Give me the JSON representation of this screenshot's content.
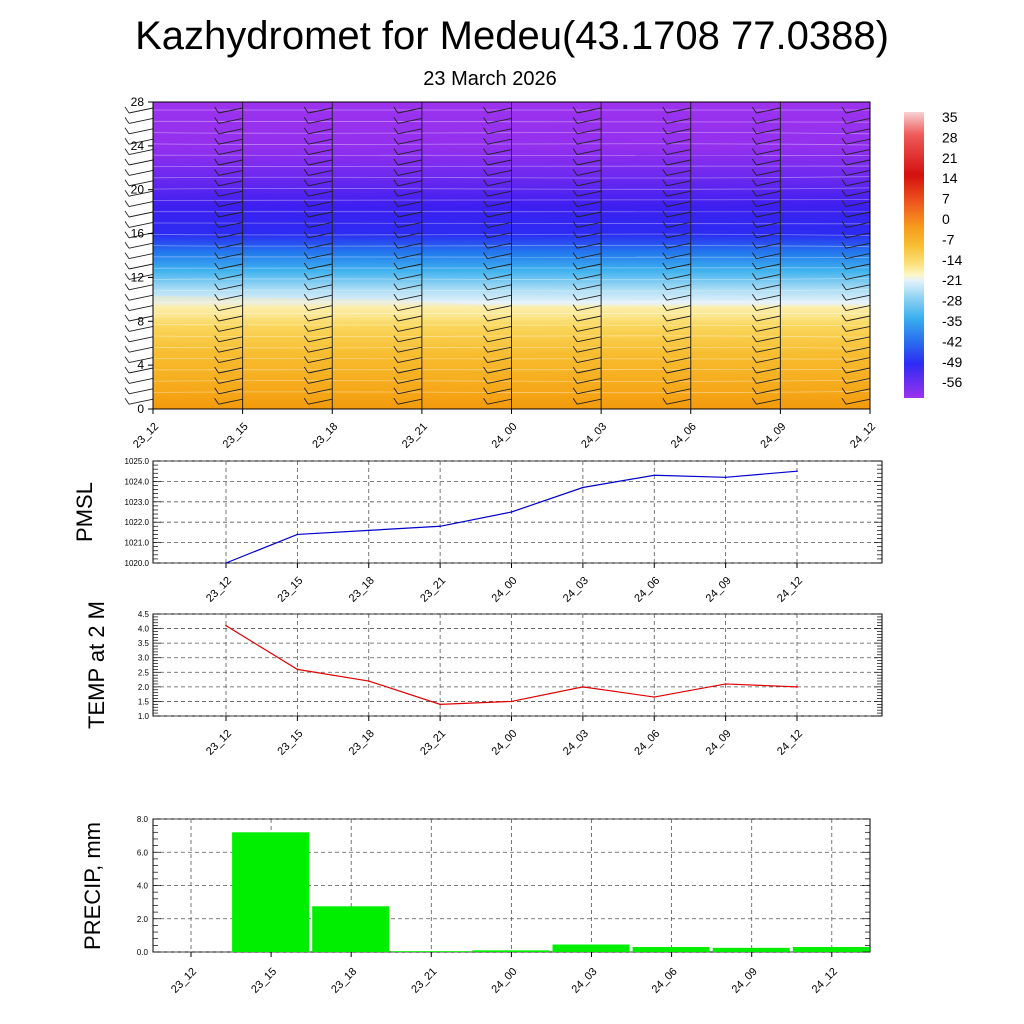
{
  "page": {
    "title": "Kazhydromet for Medeu(43.1708 77.0388)",
    "subtitle": "23 March 2026"
  },
  "chart_data": [
    {
      "type": "heatmap",
      "name": "cross-section",
      "x_ticks": [
        "23_12",
        "23_15",
        "23_18",
        "23_21",
        "24_00",
        "24_03",
        "24_06",
        "24_09",
        "24_12"
      ],
      "y_ticks": [
        "0",
        "4",
        "8",
        "12",
        "16",
        "20",
        "24",
        "28"
      ],
      "ylim": [
        0,
        28
      ],
      "colorbar_labels": [
        "35",
        "28",
        "21",
        "14",
        "7",
        "0",
        "-7",
        "-14",
        "-21",
        "-28",
        "-35",
        "-42",
        "-49",
        "-56"
      ],
      "colors": {
        "warm": "#f6b21e",
        "cold": "#9a2fee",
        "jet": "#2d2af3"
      }
    },
    {
      "type": "line",
      "name": "PMSL",
      "ylabel": "PMSL",
      "categories": [
        "23_12",
        "23_15",
        "23_18",
        "23_21",
        "24_00",
        "24_03",
        "24_06",
        "24_09",
        "24_12"
      ],
      "values": [
        1020.0,
        1021.4,
        1021.6,
        1021.8,
        1022.5,
        1023.7,
        1024.3,
        1024.2,
        1024.5
      ],
      "ylim": [
        1020.0,
        1025.0
      ],
      "y_ticks": [
        "1020.0",
        "1021.0",
        "1022.0",
        "1023.0",
        "1024.0",
        "1025.0"
      ],
      "color": "#0000cc"
    },
    {
      "type": "line",
      "name": "TEMP at 2 M",
      "ylabel": "TEMP at 2 M",
      "categories": [
        "23_12",
        "23_15",
        "23_18",
        "23_21",
        "24_00",
        "24_03",
        "24_06",
        "24_09",
        "24_12"
      ],
      "values": [
        4.1,
        2.6,
        2.2,
        1.4,
        1.5,
        2.0,
        1.65,
        2.1,
        2.0
      ],
      "ylim": [
        1.0,
        4.5
      ],
      "y_ticks": [
        "1.0",
        "1.5",
        "2.0",
        "2.5",
        "3.0",
        "3.5",
        "4.0",
        "4.5"
      ],
      "color": "#e00000"
    },
    {
      "type": "bar",
      "name": "PRECIP, mm",
      "ylabel": "PRECIP, mm",
      "categories": [
        "23_12",
        "23_15",
        "23_18",
        "23_21",
        "24_00",
        "24_03",
        "24_06",
        "24_09",
        "24_12"
      ],
      "values": [
        0.0,
        7.2,
        2.75,
        0.05,
        0.1,
        0.45,
        0.3,
        0.25,
        0.3
      ],
      "ylim": [
        0.0,
        8.0
      ],
      "y_ticks": [
        "0.0",
        "2.0",
        "4.0",
        "6.0",
        "8.0"
      ],
      "color": "#00ee00"
    }
  ]
}
